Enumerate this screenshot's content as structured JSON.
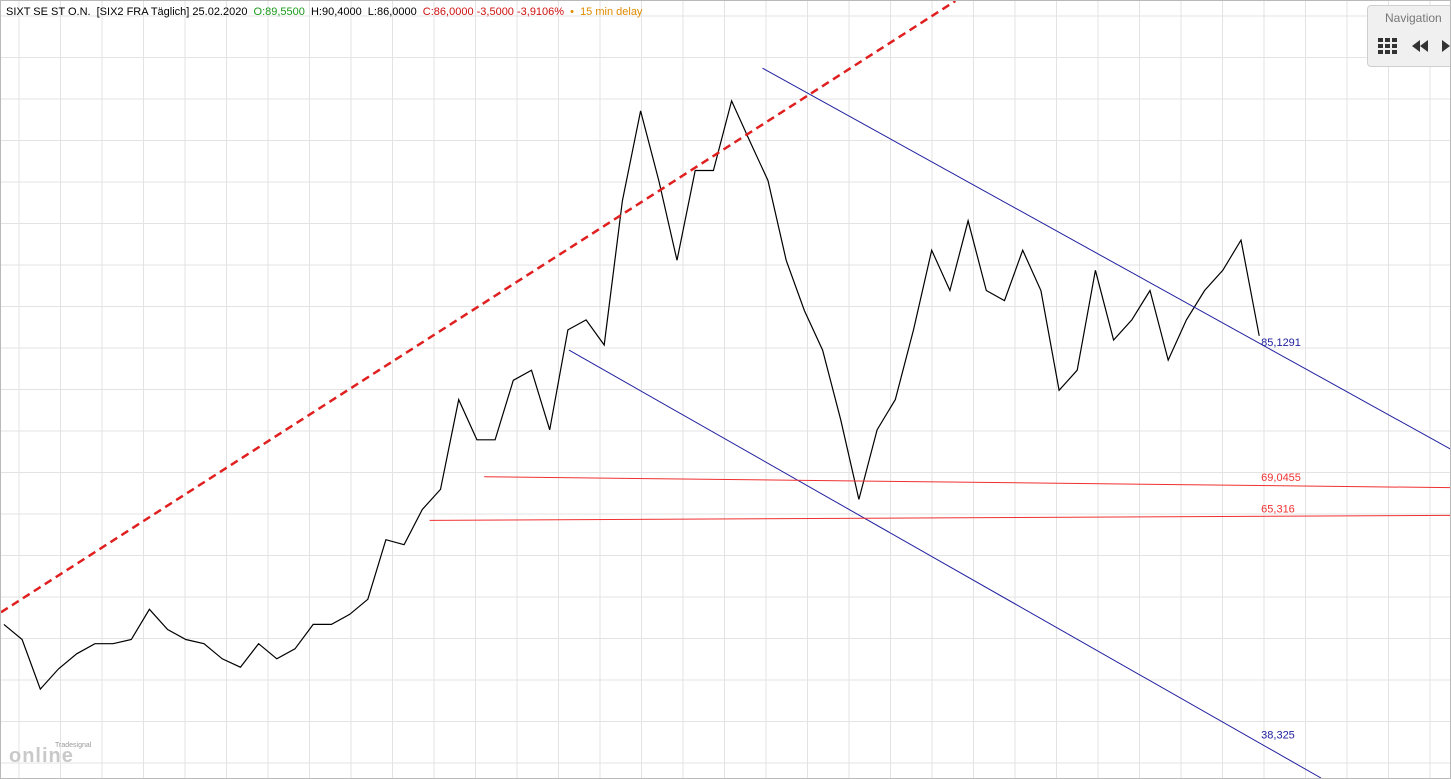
{
  "chart_data": {
    "type": "line",
    "title": "SIXT SE ST O.N.",
    "subtitle": "[SIX2 FRA Täglich] 25.02.2020",
    "quote": {
      "open": "O:89,5500",
      "high": "H:90,4000",
      "low": "L:86,0000",
      "close": "C:86,0000 -3,5000 -3,9106%",
      "delay": "15 min delay"
    },
    "values": [
      51.6,
      49.8,
      43.9,
      46.3,
      48.1,
      49.3,
      49.3,
      49.8,
      53.4,
      51.0,
      49.8,
      49.3,
      47.5,
      46.5,
      49.3,
      47.5,
      48.7,
      51.6,
      51.6,
      52.8,
      54.6,
      61.7,
      61.1,
      65.3,
      67.7,
      78.4,
      73.6,
      73.6,
      80.7,
      81.9,
      74.8,
      86.7,
      87.9,
      84.9,
      102.1,
      112.8,
      104.5,
      95.0,
      105.7,
      105.7,
      114.0,
      109.2,
      104.5,
      95.0,
      89.0,
      84.3,
      76.0,
      66.5,
      74.8,
      78.4,
      86.7,
      96.2,
      91.4,
      99.7,
      91.4,
      90.2,
      96.2,
      91.4,
      79.5,
      81.9,
      93.8,
      85.5,
      87.9,
      91.4,
      83.1,
      87.9,
      91.4,
      93.8,
      97.4,
      86.0
    ],
    "color": "#000000",
    "xlim": [
      -0.16,
      79.6
    ],
    "ylim": [
      33.3,
      125.9
    ],
    "grid": true,
    "trendlines": [
      {
        "color": "#e02020",
        "dashed": true,
        "from": [
          -0.16,
          53.05
        ],
        "to": [
          52.3,
          125.9
        ]
      },
      {
        "color": "#2020a0",
        "from": [
          41.7,
          117.9
        ],
        "to": [
          79.6,
          72.4
        ],
        "label": {
          "value": 85.1291,
          "label": "85,1291"
        }
      },
      {
        "color": "#2020a0",
        "from": [
          31.06,
          84.3
        ],
        "to": [
          72.4,
          33.3
        ],
        "label": {
          "value": 38.325,
          "label": "38,325"
        }
      },
      {
        "color": "#f03030",
        "from": [
          26.4,
          69.2
        ],
        "to": [
          79.6,
          67.9
        ],
        "label": {
          "value": 69.0455,
          "label": "69,0455"
        }
      },
      {
        "color": "#f03030",
        "from": [
          23.4,
          64.0
        ],
        "to": [
          79.6,
          64.6
        ],
        "label": {
          "value": 65.316,
          "label": "65,316"
        }
      }
    ]
  },
  "navigation": {
    "title": "Navigation"
  },
  "logo": {
    "brand": "Tradesignal",
    "name": "online"
  }
}
